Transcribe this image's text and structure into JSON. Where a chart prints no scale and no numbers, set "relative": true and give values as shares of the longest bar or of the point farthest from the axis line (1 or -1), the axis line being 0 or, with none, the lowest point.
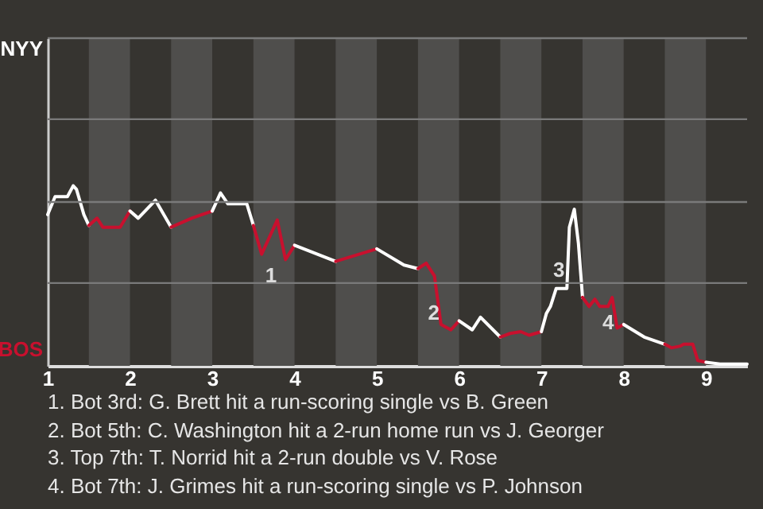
{
  "chart_data": {
    "type": "line",
    "relative": true,
    "xlim": [
      1,
      9.5
    ],
    "xticks": [
      1,
      2,
      3,
      4,
      5,
      6,
      7,
      8,
      9
    ],
    "ref_lines": [
      {
        "axis": "y",
        "value": 0.46,
        "color": "#7a7a7a"
      },
      {
        "axis": "y",
        "value": 0.91,
        "color": "#7a7a7a"
      },
      {
        "axis": "y",
        "value": 1.37,
        "color": "#7a7a7a"
      },
      {
        "axis": "y",
        "value": 1.82,
        "color": "#7a7a7a"
      }
    ],
    "bands": [
      {
        "axis": "x",
        "from": 1.5,
        "to": 2,
        "color": "#4f4e4c"
      },
      {
        "axis": "x",
        "from": 2.5,
        "to": 3,
        "color": "#4f4e4c"
      },
      {
        "axis": "x",
        "from": 3.5,
        "to": 4,
        "color": "#4f4e4c"
      },
      {
        "axis": "x",
        "from": 4.5,
        "to": 5,
        "color": "#4f4e4c"
      },
      {
        "axis": "x",
        "from": 5.5,
        "to": 6,
        "color": "#4f4e4c"
      },
      {
        "axis": "x",
        "from": 6.5,
        "to": 7,
        "color": "#4f4e4c"
      },
      {
        "axis": "x",
        "from": 7.5,
        "to": 8,
        "color": "#4f4e4c"
      },
      {
        "axis": "x",
        "from": 8.5,
        "to": 9,
        "color": "#4f4e4c"
      }
    ],
    "series": [
      {
        "color": "#ffffff",
        "x": [
          1,
          1.09,
          1.24,
          1.31,
          1.35,
          1.44,
          1.5
        ],
        "values": [
          0.84,
          0.94,
          0.94,
          1,
          0.98,
          0.84,
          0.78
        ]
      },
      {
        "color": "#c8102e",
        "x": [
          1.5,
          1.6,
          1.67,
          1.88,
          2
        ],
        "values": [
          0.78,
          0.82,
          0.77,
          0.77,
          0.86
        ]
      },
      {
        "color": "#ffffff",
        "x": [
          2,
          2.1,
          2.31,
          2.5
        ],
        "values": [
          0.86,
          0.82,
          0.92,
          0.77
        ]
      },
      {
        "color": "#c8102e",
        "x": [
          2.5,
          2.75,
          3
        ],
        "values": [
          0.77,
          0.82,
          0.86
        ]
      },
      {
        "color": "#ffffff",
        "x": [
          3,
          3.1,
          3.19,
          3.42,
          3.5
        ],
        "values": [
          0.86,
          0.96,
          0.9,
          0.9,
          0.78
        ]
      },
      {
        "color": "#c8102e",
        "x": [
          3.5,
          3.6,
          3.79,
          3.89,
          4
        ],
        "values": [
          0.78,
          0.62,
          0.81,
          0.59,
          0.67
        ]
      },
      {
        "color": "#ffffff",
        "x": [
          4,
          4.5
        ],
        "values": [
          0.67,
          0.58
        ]
      },
      {
        "color": "#c8102e",
        "x": [
          4.5,
          5
        ],
        "values": [
          0.58,
          0.65
        ]
      },
      {
        "color": "#ffffff",
        "x": [
          5,
          5.33,
          5.5
        ],
        "values": [
          0.65,
          0.56,
          0.54
        ]
      },
      {
        "color": "#c8102e",
        "x": [
          5.5,
          5.6,
          5.7,
          5.78,
          5.9,
          6
        ],
        "values": [
          0.54,
          0.57,
          0.5,
          0.23,
          0.2,
          0.25
        ]
      },
      {
        "color": "#ffffff",
        "x": [
          6,
          6.16,
          6.26,
          6.5
        ],
        "values": [
          0.25,
          0.2,
          0.27,
          0.16
        ]
      },
      {
        "color": "#c8102e",
        "x": [
          6.5,
          6.62,
          6.75,
          6.85,
          7
        ],
        "values": [
          0.16,
          0.18,
          0.19,
          0.17,
          0.19
        ]
      },
      {
        "color": "#ffffff",
        "x": [
          7,
          7.06,
          7.11,
          7.18,
          7.31,
          7.34,
          7.4,
          7.45,
          7.5
        ],
        "values": [
          0.19,
          0.29,
          0.33,
          0.43,
          0.43,
          0.77,
          0.87,
          0.68,
          0.38
        ]
      },
      {
        "color": "#c8102e",
        "x": [
          7.5,
          7.58,
          7.65,
          7.71,
          7.81,
          7.86,
          7.92,
          8
        ],
        "values": [
          0.38,
          0.33,
          0.37,
          0.33,
          0.33,
          0.38,
          0.21,
          0.23
        ]
      },
      {
        "color": "#ffffff",
        "x": [
          8,
          8.25,
          8.5
        ],
        "values": [
          0.23,
          0.16,
          0.12
        ]
      },
      {
        "color": "#c8102e",
        "x": [
          8.5,
          8.58,
          8.69,
          8.73,
          8.84,
          8.9,
          9
        ],
        "values": [
          0.12,
          0.1,
          0.11,
          0.12,
          0.12,
          0.03,
          0.02
        ]
      },
      {
        "color": "#ffffff",
        "x": [
          9,
          9.17,
          9.5
        ],
        "values": [
          0.02,
          0.01,
          0.01
        ]
      }
    ],
    "annotations": [
      "NYY",
      "BOS",
      {
        "text": "1",
        "x": 3.86,
        "y": 0.5
      },
      {
        "text": "2",
        "x": 5.84,
        "y": 0.29
      },
      {
        "text": "3",
        "x": 7.36,
        "y": 0.53
      },
      {
        "text": "4",
        "x": 7.96,
        "y": 0.24
      },
      "1. Bot 3rd: G. Brett hit a run-scoring single vs B. Green",
      "2. Bot 5th: C. Washington hit a 2-run home run vs J. Georger",
      "3. Top 7th: T. Norrid hit a 2-run double vs V. Rose",
      "4. Bot 7th: J. Grimes hit a run-scoring single vs P. Johnson"
    ]
  }
}
